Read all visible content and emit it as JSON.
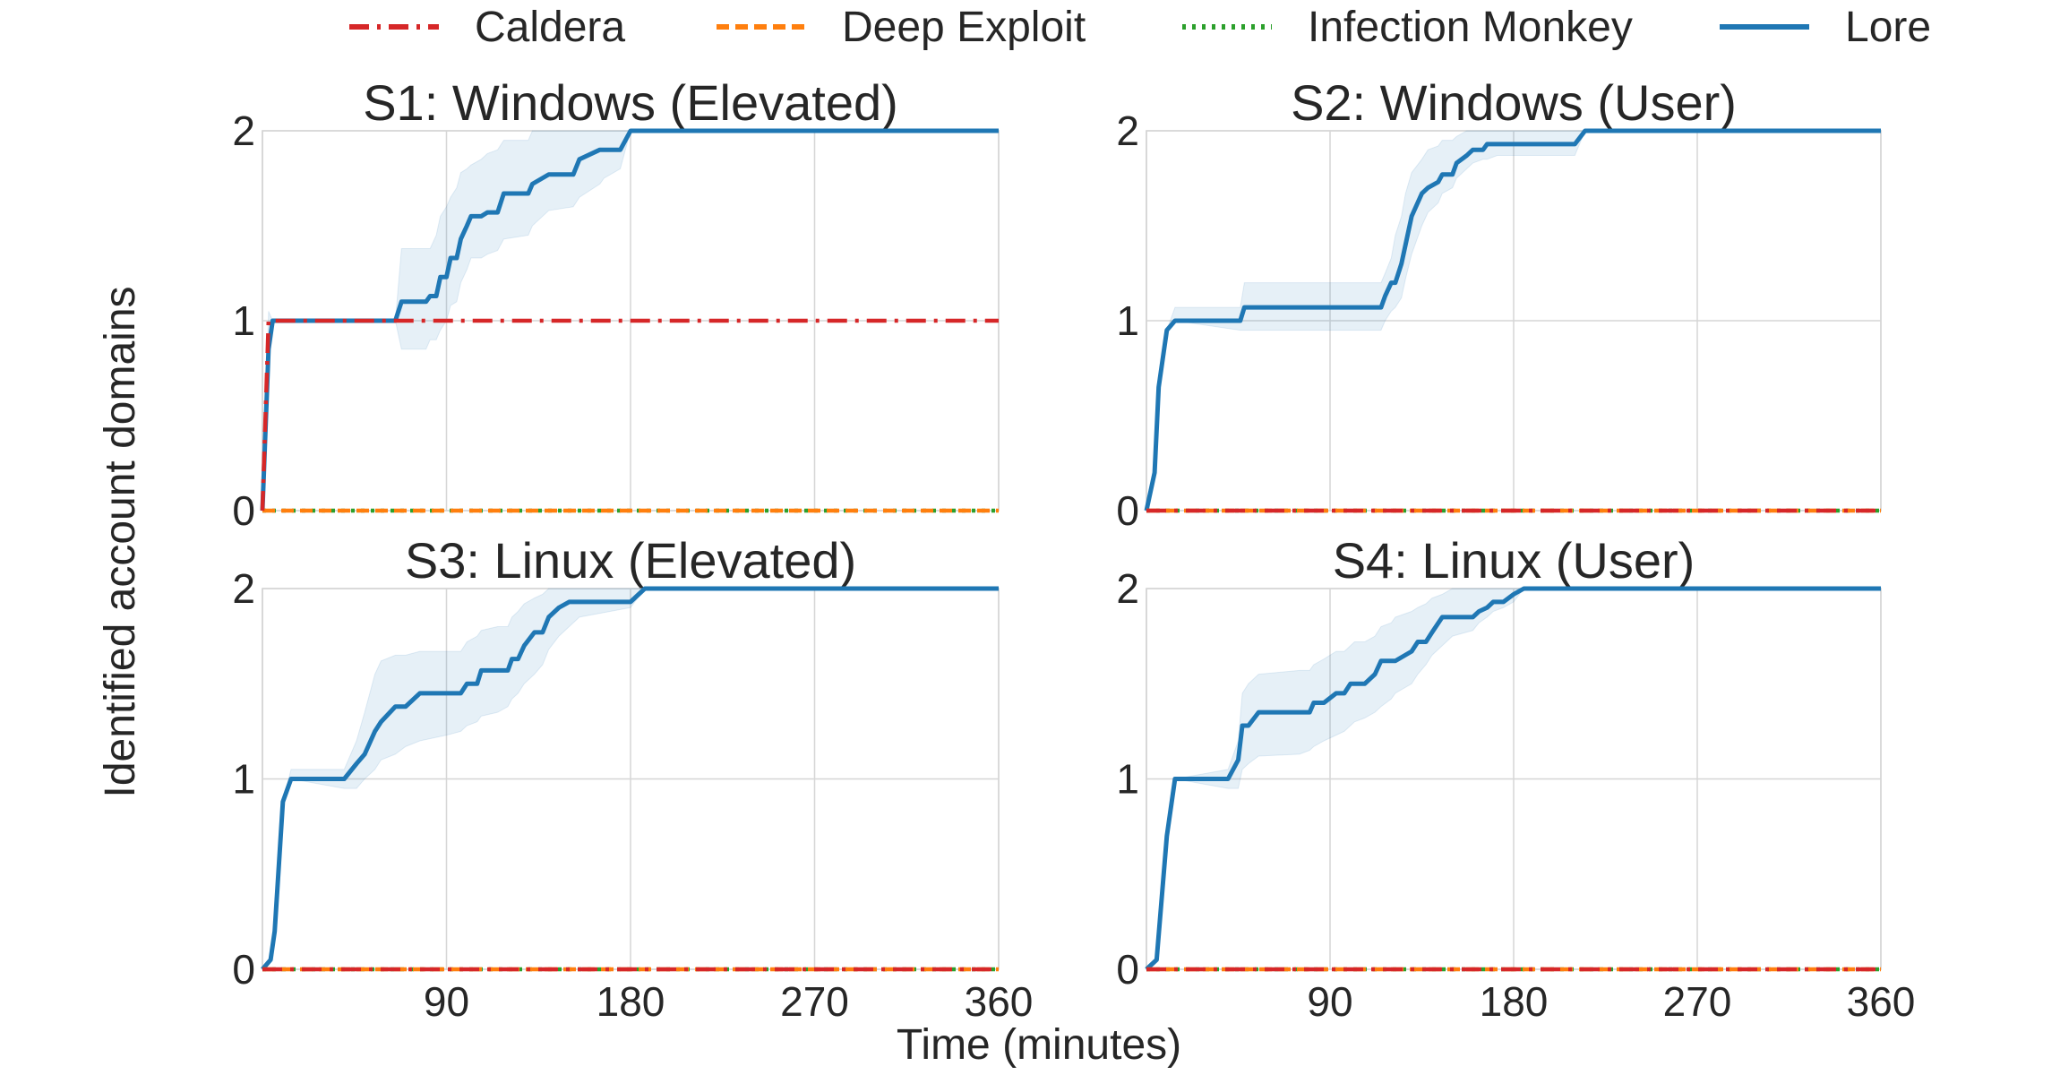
{
  "figure": {
    "xlabel": "Time (minutes)",
    "ylabel": "Identified account domains"
  },
  "legend": [
    {
      "name": "Caldera",
      "color": "#d62728",
      "dash": "dashdot"
    },
    {
      "name": "Deep Exploit",
      "color": "#ff7f0e",
      "dash": "dashed"
    },
    {
      "name": "Infection Monkey",
      "color": "#2ca02c",
      "dash": "dotted"
    },
    {
      "name": "Lore",
      "color": "#1f77b4",
      "dash": "solid"
    }
  ],
  "chart_data": [
    {
      "type": "line",
      "title": "S1: Windows (Elevated)",
      "xlim": [
        0,
        360
      ],
      "ylim": [
        0,
        2
      ],
      "xticks": [
        90,
        180,
        270,
        360
      ],
      "yticks": [
        0,
        1,
        2
      ],
      "grid": true,
      "series": [
        {
          "name": "Caldera",
          "x": [
            0,
            3,
            360
          ],
          "y": [
            0,
            1,
            1
          ]
        },
        {
          "name": "Deep Exploit",
          "x": [
            0,
            360
          ],
          "y": [
            0,
            0
          ]
        },
        {
          "name": "Infection Monkey",
          "x": [
            0,
            360
          ],
          "y": [
            0,
            0
          ]
        },
        {
          "name": "Lore",
          "x": [
            0,
            3,
            5,
            65,
            68,
            80,
            82,
            85,
            87,
            90,
            92,
            95,
            97,
            100,
            102,
            107,
            110,
            115,
            118,
            130,
            132,
            140,
            152,
            155,
            165,
            167,
            175,
            180,
            360
          ],
          "y": [
            0,
            0.85,
            1,
            1,
            1.1,
            1.1,
            1.13,
            1.13,
            1.23,
            1.23,
            1.33,
            1.33,
            1.43,
            1.5,
            1.55,
            1.55,
            1.57,
            1.57,
            1.67,
            1.67,
            1.72,
            1.77,
            1.77,
            1.85,
            1.9,
            1.9,
            1.9,
            2,
            2
          ],
          "band_low": [
            0,
            0.85,
            1,
            1,
            0.85,
            0.85,
            0.9,
            0.9,
            0.95,
            1.0,
            1.08,
            1.1,
            1.2,
            1.27,
            1.33,
            1.33,
            1.35,
            1.37,
            1.43,
            1.45,
            1.5,
            1.58,
            1.6,
            1.65,
            1.72,
            1.75,
            1.8,
            2,
            2
          ],
          "band_high": [
            0,
            1.05,
            1,
            1,
            1.38,
            1.38,
            1.38,
            1.45,
            1.55,
            1.6,
            1.65,
            1.7,
            1.78,
            1.8,
            1.82,
            1.85,
            1.88,
            1.9,
            1.95,
            1.95,
            2.0,
            2.0,
            2.0,
            2.0,
            2.0,
            2.0,
            2.0,
            2,
            2
          ]
        }
      ]
    },
    {
      "type": "line",
      "title": "S2: Windows (User)",
      "xlim": [
        0,
        360
      ],
      "ylim": [
        0,
        2
      ],
      "xticks": [
        90,
        180,
        270,
        360
      ],
      "yticks": [
        0,
        1,
        2
      ],
      "grid": true,
      "series": [
        {
          "name": "Caldera",
          "x": [
            0,
            360
          ],
          "y": [
            0,
            0
          ]
        },
        {
          "name": "Deep Exploit",
          "x": [
            0,
            360
          ],
          "y": [
            0,
            0
          ]
        },
        {
          "name": "Infection Monkey",
          "x": [
            0,
            360
          ],
          "y": [
            0,
            0
          ]
        },
        {
          "name": "Lore",
          "x": [
            0,
            4,
            6,
            10,
            14,
            46,
            48,
            115,
            117,
            120,
            122,
            125,
            127,
            130,
            135,
            138,
            143,
            145,
            150,
            152,
            157,
            160,
            165,
            167,
            172,
            210,
            215,
            360
          ],
          "y": [
            0,
            0.2,
            0.65,
            0.95,
            1,
            1,
            1.07,
            1.07,
            1.13,
            1.2,
            1.2,
            1.3,
            1.4,
            1.55,
            1.67,
            1.7,
            1.73,
            1.77,
            1.77,
            1.83,
            1.87,
            1.9,
            1.9,
            1.93,
            1.93,
            1.93,
            2,
            2
          ],
          "band_low": [
            0,
            0.2,
            0.65,
            0.95,
            1,
            0.95,
            0.95,
            0.95,
            1.0,
            1.05,
            1.07,
            1.12,
            1.22,
            1.35,
            1.5,
            1.57,
            1.62,
            1.67,
            1.7,
            1.75,
            1.8,
            1.83,
            1.85,
            1.85,
            1.87,
            1.87,
            2,
            2
          ],
          "band_high": [
            0,
            0.2,
            0.65,
            0.95,
            1.07,
            1.07,
            1.2,
            1.2,
            1.25,
            1.33,
            1.45,
            1.55,
            1.67,
            1.78,
            1.85,
            1.9,
            1.92,
            1.95,
            1.95,
            1.97,
            2.0,
            2.0,
            2.0,
            2.0,
            2.0,
            2.0,
            2,
            2
          ]
        }
      ]
    },
    {
      "type": "line",
      "title": "S3: Linux (Elevated)",
      "xlim": [
        0,
        360
      ],
      "ylim": [
        0,
        2
      ],
      "xticks": [
        90,
        180,
        270,
        360
      ],
      "yticks": [
        0,
        1,
        2
      ],
      "grid": true,
      "series": [
        {
          "name": "Caldera",
          "x": [
            0,
            360
          ],
          "y": [
            0,
            0
          ]
        },
        {
          "name": "Deep Exploit",
          "x": [
            0,
            360
          ],
          "y": [
            0,
            0
          ]
        },
        {
          "name": "Infection Monkey",
          "x": [
            0,
            360
          ],
          "y": [
            0,
            0
          ]
        },
        {
          "name": "Lore",
          "x": [
            0,
            4,
            6,
            10,
            14,
            40,
            46,
            50,
            55,
            58,
            65,
            70,
            77,
            90,
            97,
            100,
            105,
            107,
            115,
            120,
            122,
            125,
            128,
            133,
            137,
            140,
            145,
            150,
            155,
            170,
            180,
            187,
            360
          ],
          "y": [
            0,
            0.05,
            0.2,
            0.88,
            1,
            1,
            1.08,
            1.13,
            1.25,
            1.3,
            1.38,
            1.38,
            1.45,
            1.45,
            1.45,
            1.5,
            1.5,
            1.57,
            1.57,
            1.57,
            1.63,
            1.63,
            1.7,
            1.77,
            1.77,
            1.85,
            1.9,
            1.93,
            1.93,
            1.93,
            1.93,
            2,
            2
          ],
          "band_low": [
            0,
            0.05,
            0.2,
            0.88,
            1,
            0.95,
            0.95,
            1.0,
            1.05,
            1.1,
            1.13,
            1.17,
            1.2,
            1.23,
            1.25,
            1.28,
            1.3,
            1.33,
            1.35,
            1.38,
            1.42,
            1.45,
            1.5,
            1.55,
            1.6,
            1.68,
            1.75,
            1.8,
            1.85,
            1.88,
            1.9,
            2,
            2
          ],
          "band_high": [
            0,
            0.05,
            0.2,
            0.88,
            1.05,
            1.05,
            1.2,
            1.35,
            1.55,
            1.62,
            1.65,
            1.65,
            1.67,
            1.67,
            1.67,
            1.72,
            1.75,
            1.78,
            1.8,
            1.8,
            1.85,
            1.88,
            1.92,
            1.95,
            1.97,
            2.0,
            2.0,
            2.0,
            2.0,
            2.0,
            2.0,
            2,
            2
          ]
        }
      ]
    },
    {
      "type": "line",
      "title": "S4: Linux (User)",
      "xlim": [
        0,
        360
      ],
      "ylim": [
        0,
        2
      ],
      "xticks": [
        90,
        180,
        270,
        360
      ],
      "yticks": [
        0,
        1,
        2
      ],
      "grid": true,
      "series": [
        {
          "name": "Caldera",
          "x": [
            0,
            360
          ],
          "y": [
            0,
            0
          ]
        },
        {
          "name": "Deep Exploit",
          "x": [
            0,
            360
          ],
          "y": [
            0,
            0
          ]
        },
        {
          "name": "Infection Monkey",
          "x": [
            0,
            360
          ],
          "y": [
            0,
            0
          ]
        },
        {
          "name": "Lore",
          "x": [
            0,
            5,
            10,
            14,
            40,
            45,
            47,
            50,
            55,
            75,
            80,
            82,
            87,
            93,
            97,
            100,
            102,
            107,
            112,
            115,
            120,
            122,
            130,
            133,
            137,
            140,
            145,
            150,
            160,
            163,
            167,
            170,
            175,
            180,
            185,
            360
          ],
          "y": [
            0,
            0.05,
            0.7,
            1,
            1,
            1.1,
            1.28,
            1.28,
            1.35,
            1.35,
            1.35,
            1.4,
            1.4,
            1.45,
            1.45,
            1.5,
            1.5,
            1.5,
            1.55,
            1.62,
            1.62,
            1.62,
            1.67,
            1.72,
            1.72,
            1.77,
            1.85,
            1.85,
            1.85,
            1.88,
            1.9,
            1.93,
            1.93,
            1.97,
            2,
            2
          ],
          "band_low": [
            0,
            0.05,
            0.7,
            1,
            0.95,
            0.95,
            1.05,
            1.08,
            1.12,
            1.13,
            1.15,
            1.17,
            1.2,
            1.23,
            1.25,
            1.28,
            1.3,
            1.32,
            1.35,
            1.38,
            1.42,
            1.45,
            1.5,
            1.55,
            1.6,
            1.65,
            1.7,
            1.75,
            1.78,
            1.82,
            1.85,
            1.88,
            1.9,
            1.93,
            2,
            2
          ],
          "band_high": [
            0,
            0.05,
            0.7,
            1,
            1.05,
            1.2,
            1.45,
            1.5,
            1.55,
            1.57,
            1.57,
            1.6,
            1.63,
            1.67,
            1.67,
            1.7,
            1.72,
            1.72,
            1.75,
            1.8,
            1.82,
            1.85,
            1.88,
            1.9,
            1.92,
            1.95,
            1.97,
            2.0,
            2.0,
            2.0,
            2.0,
            2.0,
            2.0,
            2.0,
            2,
            2
          ]
        }
      ]
    }
  ]
}
